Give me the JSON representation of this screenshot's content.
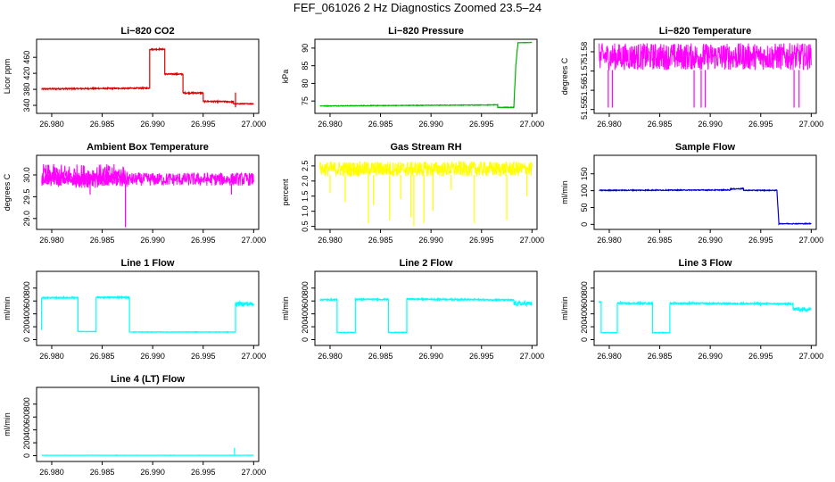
{
  "page": {
    "title": "FEF_061026  2 Hz Diagnostics Zoomed 23.5–24"
  },
  "chart_data": [
    {
      "type": "line",
      "title": "Li−820 CO2",
      "ylabel": "Licor ppm",
      "color": "#dd0000",
      "xlim": [
        26.9785,
        27.0005
      ],
      "ylim": [
        320,
        505
      ],
      "xticks": [
        "26.980",
        "26.985",
        "26.990",
        "26.995",
        "27.000"
      ],
      "xtick_values": [
        26.98,
        26.985,
        26.99,
        26.995,
        27.0
      ],
      "yticks": [
        "340",
        "380",
        "420",
        "460"
      ],
      "ytick_values": [
        340,
        380,
        420,
        460
      ],
      "segments": [
        {
          "x0": 26.979,
          "x1": 26.9897,
          "y0": 381,
          "y1": 383,
          "noise": 1.5
        },
        {
          "x0": 26.9897,
          "x1": 26.9912,
          "y0": 480,
          "y1": 480,
          "noise": 1.5
        },
        {
          "x0": 26.9912,
          "x1": 26.993,
          "y0": 418,
          "y1": 418,
          "noise": 1.5
        },
        {
          "x0": 26.993,
          "x1": 26.995,
          "y0": 371,
          "y1": 371,
          "noise": 1.5
        },
        {
          "x0": 26.995,
          "x1": 26.998,
          "y0": 350,
          "y1": 349,
          "noise": 1.5
        },
        {
          "x0": 26.998,
          "x1": 27.0,
          "y0": 344,
          "y1": 344,
          "noise": 1.0
        }
      ],
      "spikes": [
        {
          "x": 26.9982,
          "y0": 335,
          "y1": 372
        }
      ]
    },
    {
      "type": "line",
      "title": "Li−820 Pressure",
      "ylabel": "kPa",
      "color": "#00b400",
      "xlim": [
        26.9785,
        27.0005
      ],
      "ylim": [
        71.5,
        92.5
      ],
      "xticks": [
        "26.980",
        "26.985",
        "26.990",
        "26.995",
        "27.000"
      ],
      "xtick_values": [
        26.98,
        26.985,
        26.99,
        26.995,
        27.0
      ],
      "yticks": [
        "75",
        "80",
        "85",
        "90"
      ],
      "ytick_values": [
        75,
        80,
        85,
        90
      ],
      "segments": [
        {
          "x0": 26.979,
          "x1": 26.9966,
          "y0": 73.6,
          "y1": 73.9,
          "noise": 0.08
        },
        {
          "x0": 26.9966,
          "x1": 26.9982,
          "y0": 73.2,
          "y1": 73.2,
          "noise": 0.08
        },
        {
          "x0": 26.9982,
          "x1": 26.9984,
          "y0": 73.2,
          "y1": 85.0,
          "noise": 0.2
        },
        {
          "x0": 26.9984,
          "x1": 26.9986,
          "y0": 85.0,
          "y1": 91.3,
          "noise": 0.2
        },
        {
          "x0": 26.9986,
          "x1": 27.0,
          "y0": 91.5,
          "y1": 91.6,
          "noise": 0.05
        }
      ],
      "spikes": []
    },
    {
      "type": "line",
      "title": "Li−820 Temperature",
      "ylabel": "degrees C",
      "color": "#ff00ff",
      "xlim": [
        26.9785,
        27.0005
      ],
      "ylim": [
        51.548,
        51.5865
      ],
      "xticks": [
        "26.980",
        "26.985",
        "26.990",
        "26.995",
        "27.000"
      ],
      "xtick_values": [
        26.98,
        26.985,
        26.99,
        26.995,
        27.0
      ],
      "yticks": [
        "51.55",
        "51.56",
        "51.57",
        "51.58"
      ],
      "ytick_values": [
        51.55,
        51.56,
        51.57,
        51.58
      ],
      "band": {
        "x0": 26.979,
        "x1": 27.0,
        "lo": 51.5705,
        "hi": 51.5845,
        "density": 3.0
      },
      "spikes": [
        {
          "x": 26.9799,
          "y0": 51.551,
          "y1": 51.5705
        },
        {
          "x": 26.9803,
          "y0": 51.551,
          "y1": 51.5705
        },
        {
          "x": 26.9884,
          "y0": 51.551,
          "y1": 51.5705
        },
        {
          "x": 26.9891,
          "y0": 51.551,
          "y1": 51.5705
        },
        {
          "x": 26.9895,
          "y0": 51.551,
          "y1": 51.5705
        },
        {
          "x": 26.9983,
          "y0": 51.551,
          "y1": 51.5705
        },
        {
          "x": 26.9988,
          "y0": 51.551,
          "y1": 51.5705
        }
      ]
    },
    {
      "type": "line",
      "title": "Ambient Box Temperature",
      "ylabel": "degrees C",
      "color": "#ff00ff",
      "xlim": [
        26.9785,
        27.0005
      ],
      "ylim": [
        28.75,
        30.45
      ],
      "xticks": [
        "26.980",
        "26.985",
        "26.990",
        "26.995",
        "27.000"
      ],
      "xtick_values": [
        26.98,
        26.985,
        26.99,
        26.995,
        27.0
      ],
      "yticks": [
        "29.0",
        "29.5",
        "30.0"
      ],
      "ytick_values": [
        29.0,
        29.5,
        30.0
      ],
      "band": {
        "x0": 26.979,
        "x1": 27.0,
        "lo": 29.75,
        "hi": 30.05,
        "density": 2.5
      },
      "band2": {
        "x0": 26.979,
        "x1": 26.9875,
        "lo": 29.7,
        "hi": 30.25,
        "density": 2.0
      },
      "spikes": [
        {
          "x": 26.9873,
          "y0": 28.8,
          "y1": 29.8
        },
        {
          "x": 26.9838,
          "y0": 29.55,
          "y1": 29.8
        },
        {
          "x": 26.9978,
          "y0": 29.55,
          "y1": 29.8
        }
      ]
    },
    {
      "type": "line",
      "title": "Gas Stream RH",
      "ylabel": "percent",
      "color": "#ffff00",
      "xlim": [
        26.9785,
        27.0005
      ],
      "ylim": [
        0.4,
        2.85
      ],
      "xticks": [
        "26.980",
        "26.985",
        "26.990",
        "26.995",
        "27.000"
      ],
      "xtick_values": [
        26.98,
        26.985,
        26.99,
        26.995,
        27.0
      ],
      "yticks": [
        "0.5",
        "1.0",
        "1.5",
        "2.0",
        "2.5"
      ],
      "ytick_values": [
        0.5,
        1.0,
        1.5,
        2.0,
        2.5
      ],
      "band": {
        "x0": 26.979,
        "x1": 27.0,
        "lo": 2.15,
        "hi": 2.65,
        "density": 3.0
      },
      "spikes": [
        {
          "x": 26.98,
          "y0": 1.6,
          "y1": 2.2
        },
        {
          "x": 26.9815,
          "y0": 1.3,
          "y1": 2.2
        },
        {
          "x": 26.9838,
          "y0": 0.6,
          "y1": 2.2
        },
        {
          "x": 26.9843,
          "y0": 1.2,
          "y1": 2.2
        },
        {
          "x": 26.9859,
          "y0": 0.7,
          "y1": 2.2
        },
        {
          "x": 26.987,
          "y0": 1.4,
          "y1": 2.2
        },
        {
          "x": 26.988,
          "y0": 0.8,
          "y1": 2.2
        },
        {
          "x": 26.9883,
          "y0": 0.5,
          "y1": 2.2
        },
        {
          "x": 26.9893,
          "y0": 0.6,
          "y1": 2.2
        },
        {
          "x": 26.9902,
          "y0": 1.0,
          "y1": 2.2
        },
        {
          "x": 26.992,
          "y0": 1.7,
          "y1": 2.2
        },
        {
          "x": 26.9943,
          "y0": 0.6,
          "y1": 2.2
        },
        {
          "x": 26.9975,
          "y0": 0.7,
          "y1": 2.2
        },
        {
          "x": 26.9995,
          "y0": 1.5,
          "y1": 2.2
        }
      ]
    },
    {
      "type": "line",
      "title": "Sample Flow",
      "ylabel": "ml/min",
      "color": "#0000cc",
      "xlim": [
        26.9785,
        27.0005
      ],
      "ylim": [
        -15,
        205
      ],
      "xticks": [
        "26.980",
        "26.985",
        "26.990",
        "26.995",
        "27.000"
      ],
      "xtick_values": [
        26.98,
        26.985,
        26.99,
        26.995,
        27.0
      ],
      "yticks": [
        "0",
        "50",
        "100",
        "150"
      ],
      "ytick_values": [
        0,
        50,
        100,
        150
      ],
      "segments": [
        {
          "x0": 26.979,
          "x1": 26.992,
          "y0": 101,
          "y1": 102,
          "noise": 1.2
        },
        {
          "x0": 26.992,
          "x1": 26.9933,
          "y0": 105,
          "y1": 106,
          "noise": 1.2
        },
        {
          "x0": 26.9933,
          "x1": 26.9966,
          "y0": 101,
          "y1": 101,
          "noise": 1.0
        },
        {
          "x0": 26.9966,
          "x1": 26.9968,
          "y0": 101,
          "y1": 3,
          "noise": 0.5
        },
        {
          "x0": 26.9968,
          "x1": 27.0,
          "y0": 2,
          "y1": 2,
          "noise": 1.0
        }
      ],
      "spikes": []
    },
    {
      "type": "line",
      "title": "Line 1 Flow",
      "ylabel": "ml/min",
      "color": "#00ffff",
      "xlim": [
        26.9785,
        27.0005
      ],
      "ylim": [
        -90,
        1060
      ],
      "xticks": [
        "26.980",
        "26.985",
        "26.990",
        "26.995",
        "27.000"
      ],
      "xtick_values": [
        26.98,
        26.985,
        26.99,
        26.995,
        27.0
      ],
      "yticks": [
        "0",
        "200",
        "400",
        "600",
        "800"
      ],
      "ytick_values": [
        0,
        200,
        400,
        600,
        800
      ],
      "segments": [
        {
          "x0": 26.979,
          "x1": 26.9826,
          "y0": 650,
          "y1": 650,
          "noise": 10
        },
        {
          "x0": 26.9826,
          "x1": 26.9844,
          "y0": 125,
          "y1": 125,
          "noise": 4
        },
        {
          "x0": 26.9844,
          "x1": 26.9877,
          "y0": 655,
          "y1": 655,
          "noise": 10
        },
        {
          "x0": 26.9877,
          "x1": 26.9982,
          "y0": 118,
          "y1": 118,
          "noise": 4
        },
        {
          "x0": 26.9982,
          "x1": 27.0,
          "y0": 555,
          "y1": 555,
          "noise": 35
        }
      ],
      "spikes": [
        {
          "x": 26.979,
          "y0": 150,
          "y1": 650
        }
      ]
    },
    {
      "type": "line",
      "title": "Line 2 Flow",
      "ylabel": "ml/min",
      "color": "#00ffff",
      "xlim": [
        26.9785,
        27.0005
      ],
      "ylim": [
        -90,
        1060
      ],
      "xticks": [
        "26.980",
        "26.985",
        "26.990",
        "26.995",
        "27.000"
      ],
      "xtick_values": [
        26.98,
        26.985,
        26.99,
        26.995,
        27.0
      ],
      "yticks": [
        "0",
        "200",
        "400",
        "600",
        "800"
      ],
      "ytick_values": [
        0,
        200,
        400,
        600,
        800
      ],
      "segments": [
        {
          "x0": 26.979,
          "x1": 26.9807,
          "y0": 620,
          "y1": 620,
          "noise": 10
        },
        {
          "x0": 26.9807,
          "x1": 26.9825,
          "y0": 112,
          "y1": 112,
          "noise": 4
        },
        {
          "x0": 26.9825,
          "x1": 26.9858,
          "y0": 625,
          "y1": 625,
          "noise": 10
        },
        {
          "x0": 26.9858,
          "x1": 26.9876,
          "y0": 112,
          "y1": 112,
          "noise": 4
        },
        {
          "x0": 26.9876,
          "x1": 26.9982,
          "y0": 630,
          "y1": 615,
          "noise": 10
        },
        {
          "x0": 26.9982,
          "x1": 27.0,
          "y0": 560,
          "y1": 560,
          "noise": 35
        }
      ],
      "spikes": []
    },
    {
      "type": "line",
      "title": "Line 3 Flow",
      "ylabel": "ml/min",
      "color": "#00ffff",
      "xlim": [
        26.9785,
        27.0005
      ],
      "ylim": [
        -90,
        1060
      ],
      "xticks": [
        "26.980",
        "26.985",
        "26.990",
        "26.995",
        "27.000"
      ],
      "xtick_values": [
        26.98,
        26.985,
        26.99,
        26.995,
        27.0
      ],
      "yticks": [
        "0",
        "200",
        "400",
        "600",
        "800"
      ],
      "ytick_values": [
        0,
        200,
        400,
        600,
        800
      ],
      "segments": [
        {
          "x0": 26.979,
          "x1": 26.9792,
          "y0": 580,
          "y1": 580,
          "noise": 10
        },
        {
          "x0": 26.9792,
          "x1": 26.9808,
          "y0": 108,
          "y1": 108,
          "noise": 4
        },
        {
          "x0": 26.9808,
          "x1": 26.9843,
          "y0": 565,
          "y1": 565,
          "noise": 12
        },
        {
          "x0": 26.9843,
          "x1": 26.986,
          "y0": 108,
          "y1": 108,
          "noise": 4
        },
        {
          "x0": 26.986,
          "x1": 26.9982,
          "y0": 565,
          "y1": 555,
          "noise": 12
        },
        {
          "x0": 26.9982,
          "x1": 27.0,
          "y0": 470,
          "y1": 470,
          "noise": 30
        }
      ],
      "spikes": []
    },
    {
      "type": "line",
      "title": "Line 4 (LT) Flow",
      "ylabel": "ml/min",
      "color": "#00ffff",
      "xlim": [
        26.9785,
        27.0005
      ],
      "ylim": [
        -90,
        1060
      ],
      "xticks": [
        "26.980",
        "26.985",
        "26.990",
        "26.995",
        "27.000"
      ],
      "xtick_values": [
        26.98,
        26.985,
        26.99,
        26.995,
        27.0
      ],
      "yticks": [
        "0",
        "200",
        "400",
        "600",
        "800"
      ],
      "ytick_values": [
        0,
        200,
        400,
        600,
        800
      ],
      "segments": [
        {
          "x0": 26.979,
          "x1": 27.0,
          "y0": 6,
          "y1": 6,
          "noise": 2
        }
      ],
      "spikes": [
        {
          "x": 26.9981,
          "y0": 6,
          "y1": 120
        }
      ]
    }
  ]
}
